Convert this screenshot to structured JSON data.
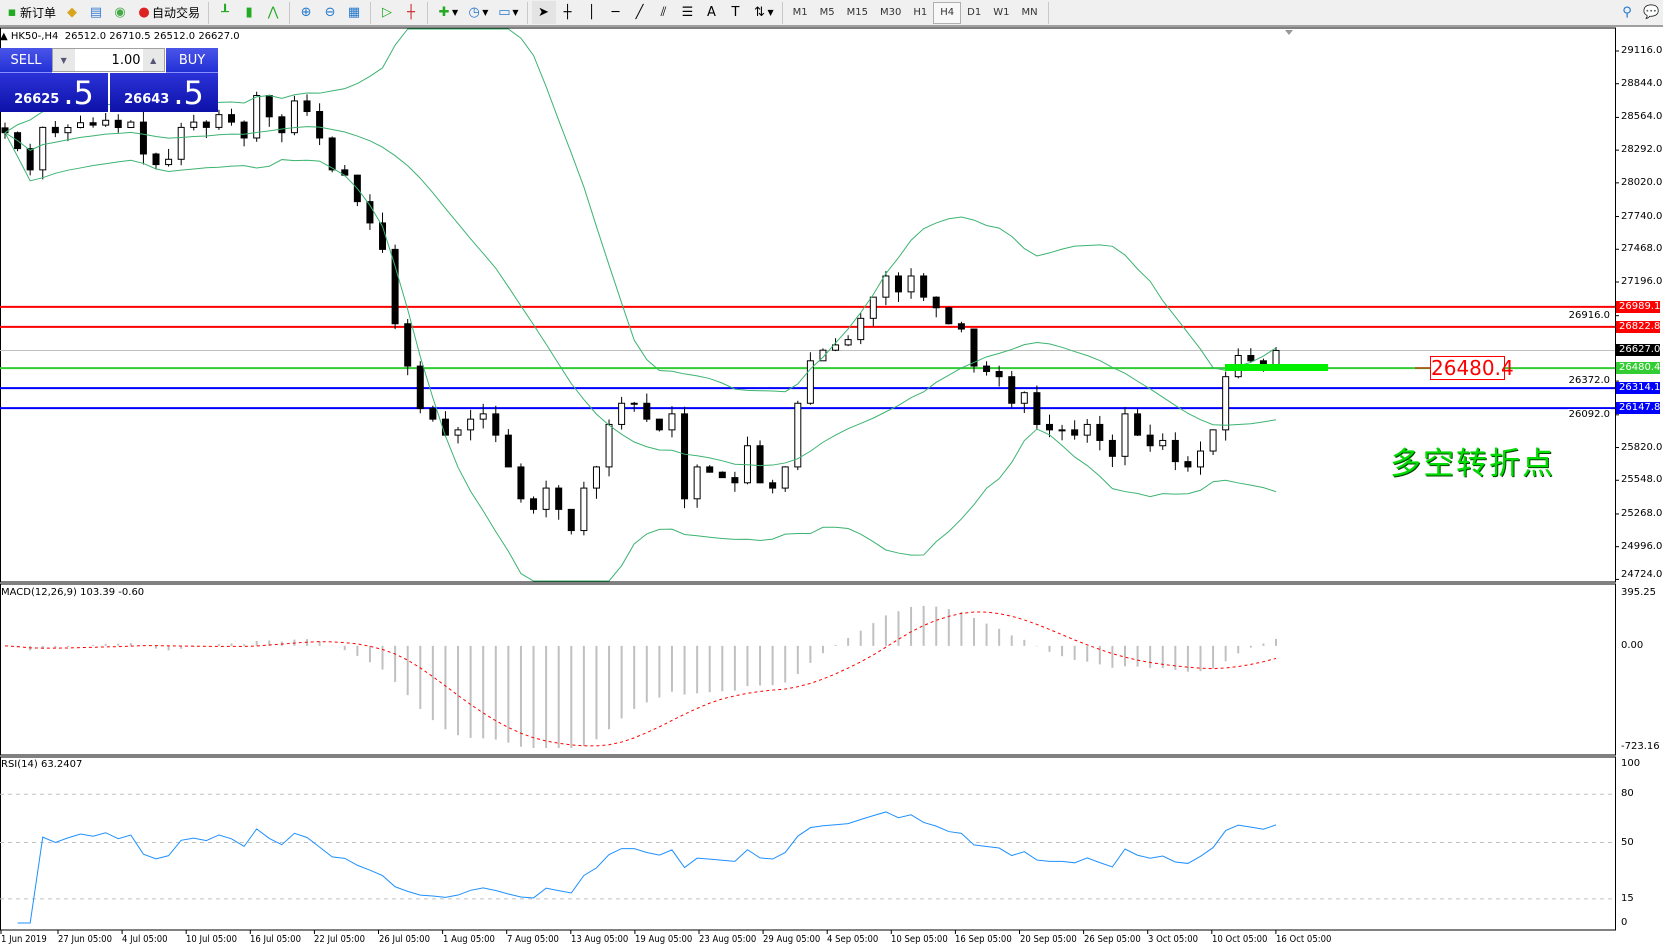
{
  "toolbar": {
    "new_order": "新订单",
    "auto_trading": "自动交易",
    "timeframes": [
      "M1",
      "M5",
      "M15",
      "M30",
      "H1",
      "H4",
      "D1",
      "W1",
      "MN"
    ],
    "selected_timeframe": "H4"
  },
  "chart_info": {
    "symbol": "HK50-,H4",
    "ohlc": "26512.0 26710.5 26512.0 26627.0"
  },
  "trade_panel": {
    "sell_label": "SELL",
    "buy_label": "BUY",
    "lot": "1.00",
    "sell_price_main": "26625",
    "sell_price_big": ".5",
    "buy_price_main": "26643",
    "buy_price_big": ".5"
  },
  "indicators": {
    "macd_label": "MACD(12,26,9) 103.39 -0.60",
    "rsi_label": "RSI(14) 63.2407"
  },
  "annotation": {
    "level_label": "26480.4",
    "note": "多空转折点",
    "note_color": "#00dd00"
  },
  "chart_data": {
    "type": "candlestick",
    "price_axis_ticks": [
      "29116.0",
      "28844.0",
      "28564.0",
      "28292.0",
      "28020.0",
      "27740.0",
      "27468.0",
      "27196.0",
      "26916.0",
      "26372.0",
      "26092.0",
      "25820.0",
      "25548.0",
      "25268.0",
      "24996.0",
      "24724.0"
    ],
    "ylim": [
      24724,
      29116
    ],
    "levels": [
      {
        "value": "26989.1",
        "color": "#ff0000"
      },
      {
        "value": "26822.8",
        "color": "#ff0000"
      },
      {
        "value": "26627.0",
        "color": "#000000",
        "line": "#c0c0c0"
      },
      {
        "value": "26480.4",
        "color": "#32cd32"
      },
      {
        "value": "26314.1",
        "color": "#0000ff"
      },
      {
        "value": "26147.8",
        "color": "#0000ff"
      }
    ],
    "time_labels": [
      "1 Jun 2019",
      "27 Jun 05:00",
      "4 Jul 05:00",
      "10 Jul 05:00",
      "16 Jul 05:00",
      "22 Jul 05:00",
      "26 Jul 05:00",
      "1 Aug 05:00",
      "7 Aug 05:00",
      "13 Aug 05:00",
      "19 Aug 05:00",
      "23 Aug 05:00",
      "29 Aug 05:00",
      "4 Sep 05:00",
      "10 Sep 05:00",
      "16 Sep 05:00",
      "20 Sep 05:00",
      "26 Sep 05:00",
      "3 Oct 05:00",
      "10 Oct 05:00",
      "16 Oct 05:00"
    ],
    "closes": [
      28437,
      28305,
      28128,
      28481,
      28437,
      28480,
      28520,
      28500,
      28540,
      28480,
      28525,
      28260,
      28172,
      28216,
      28481,
      28525,
      28481,
      28587,
      28525,
      28393,
      28746,
      28569,
      28437,
      28701,
      28613,
      28393,
      28128,
      28084,
      27864,
      27687,
      27467,
      26849,
      26497,
      26144,
      26056,
      25923,
      25967,
      26056,
      26100,
      25923,
      25659,
      25394,
      25306,
      25483,
      25306,
      25130,
      25483,
      25659,
      26012,
      26188,
      26188,
      26056,
      25967,
      26100,
      25394,
      25659,
      25615,
      25570,
      25527,
      25835,
      25527,
      25483,
      25659,
      26188,
      26541,
      26629,
      26673,
      26717,
      26894,
      27070,
      27246,
      27114,
      27246,
      27070,
      26982,
      26849,
      26805,
      26497,
      26452,
      26409,
      26188,
      26276,
      26012,
      25967,
      25967,
      25923,
      26012,
      25879,
      25747,
      26100,
      25923,
      25835,
      25879,
      25703,
      25659,
      25791,
      25967,
      26409,
      26585,
      26541,
      26497,
      26627
    ],
    "bollinger": {
      "period": 20,
      "deviation": 2,
      "color": "#3cb371"
    },
    "macd": {
      "fast": 12,
      "slow": 26,
      "signal": 9,
      "ylim": [
        -723.16,
        395.25
      ],
      "ticks": [
        "395.25",
        "0.00",
        "-723.16"
      ],
      "signal_color": "#ff0000",
      "hist_color": "#c0c0c0"
    },
    "rsi": {
      "period": 14,
      "ylim": [
        0,
        100
      ],
      "ticks": [
        "100",
        "80",
        "50",
        "15",
        "0"
      ],
      "levels": [
        80,
        50,
        15
      ],
      "color": "#1e90ff"
    }
  }
}
